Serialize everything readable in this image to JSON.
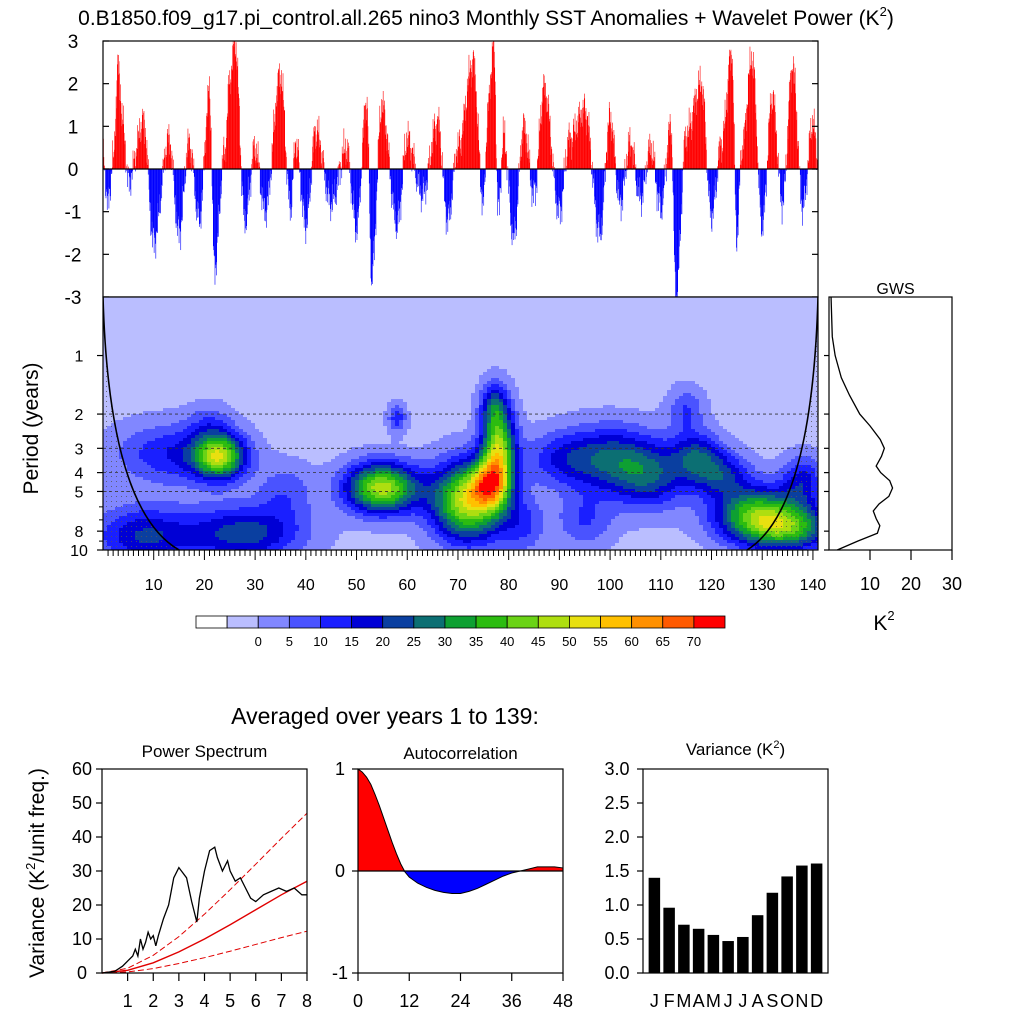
{
  "figure": {
    "title": "0.B1850.f09_g17.pi_control.all.265 nino3 Monthly SST Anomalies + Wavelet Power (K",
    "title_sup": "2",
    "title_close": ")",
    "summary_title": "Averaged over years 1 to 139:"
  },
  "colors": {
    "positive": "#ff0000",
    "negative": "#0000ff",
    "axis": "#000000",
    "cone": "#000000",
    "sig_line": "#e00000"
  },
  "chart_data": [
    {
      "id": "timeseries",
      "type": "bar",
      "description_none": "",
      "ylim": [
        -3,
        3
      ],
      "yticks": [
        "3",
        "2",
        "1",
        "0",
        "-1",
        "-2",
        "-3"
      ],
      "ytick_values": [
        3,
        2,
        1,
        0,
        -1,
        -2,
        -3
      ],
      "xlim": [
        0,
        141
      ],
      "grid": false,
      "keyframes_year": [
        0,
        1,
        2,
        3,
        4,
        5,
        8,
        10,
        13,
        15,
        17,
        19,
        21,
        22,
        24,
        25,
        26,
        28,
        30,
        32,
        35,
        37,
        38,
        40,
        42,
        45,
        48,
        50,
        52,
        53,
        55,
        58,
        60,
        63,
        66,
        68,
        70,
        73,
        75,
        76,
        77,
        78,
        79,
        81,
        83,
        85,
        87,
        90,
        92,
        95,
        98,
        100,
        102,
        104,
        106,
        108,
        110,
        112,
        113,
        115,
        118,
        120,
        122,
        124,
        125,
        126,
        128,
        130,
        132,
        134,
        136,
        138,
        140,
        141
      ],
      "keyframes_sst": [
        0.3,
        -0.8,
        0.2,
        2.4,
        1.0,
        -0.3,
        1.1,
        -1.7,
        0.7,
        -1.5,
        0.6,
        -1.2,
        1.8,
        -2.3,
        0.4,
        2.1,
        3.0,
        -1.2,
        0.5,
        -1.0,
        2.2,
        -0.9,
        0.6,
        -1.3,
        0.9,
        -0.8,
        0.5,
        -1.4,
        1.6,
        -2.5,
        1.5,
        -1.3,
        0.7,
        -0.6,
        1.1,
        -1.2,
        0.5,
        2.5,
        -0.8,
        1.5,
        3.0,
        -1.0,
        0.8,
        -1.6,
        1.0,
        -0.6,
        1.9,
        -1.0,
        0.7,
        1.4,
        -1.5,
        1.2,
        -0.8,
        0.6,
        -0.7,
        0.5,
        -0.9,
        1.0,
        -3.0,
        0.8,
        2.0,
        -1.1,
        0.6,
        2.7,
        -1.6,
        0.5,
        2.6,
        -1.3,
        1.7,
        -0.8,
        2.4,
        -0.9,
        1.1,
        0.2
      ]
    },
    {
      "id": "wavelet",
      "type": "heatmap",
      "ylabel": "Period (years)",
      "xticks": [
        "10",
        "20",
        "30",
        "40",
        "50",
        "60",
        "70",
        "80",
        "90",
        "100",
        "110",
        "120",
        "130",
        "140"
      ],
      "xtick_values": [
        10,
        20,
        30,
        40,
        50,
        60,
        70,
        80,
        90,
        100,
        110,
        120,
        130,
        140
      ],
      "yticks": [
        "1",
        "2",
        "3",
        "4",
        "5",
        "8",
        "10"
      ],
      "ytick_values": [
        1,
        2,
        3,
        4,
        5,
        8,
        10
      ],
      "xlim": [
        0,
        141
      ],
      "ylim_period": [
        0.5,
        10
      ],
      "reference_periods": [
        2,
        3,
        4,
        5
      ],
      "blobs": [
        {
          "x": 8,
          "p": 8.5,
          "sx": 7,
          "sy": 0.11,
          "v": 22
        },
        {
          "x": 14,
          "p": 3.2,
          "sx": 8,
          "sy": 0.11,
          "v": 17
        },
        {
          "x": 23,
          "p": 3.3,
          "sx": 3.5,
          "sy": 0.08,
          "v": 45
        },
        {
          "x": 21,
          "p": 2.2,
          "sx": 3,
          "sy": 0.07,
          "v": 8
        },
        {
          "x": 28,
          "p": 8.2,
          "sx": 8,
          "sy": 0.1,
          "v": 25
        },
        {
          "x": 36,
          "p": 5.0,
          "sx": 4,
          "sy": 0.1,
          "v": 10
        },
        {
          "x": 55,
          "p": 4.8,
          "sx": 5,
          "sy": 0.09,
          "v": 50
        },
        {
          "x": 58,
          "p": 2.1,
          "sx": 1.3,
          "sy": 0.05,
          "v": 15
        },
        {
          "x": 72,
          "p": 5.6,
          "sx": 5,
          "sy": 0.14,
          "v": 52
        },
        {
          "x": 76,
          "p": 4.6,
          "sx": 2.5,
          "sy": 0.08,
          "v": 30
        },
        {
          "x": 78,
          "p": 3.1,
          "sx": 2.3,
          "sy": 0.16,
          "v": 48
        },
        {
          "x": 77,
          "p": 1.8,
          "sx": 1.8,
          "sy": 0.08,
          "v": 18
        },
        {
          "x": 83,
          "p": 7.5,
          "sx": 3,
          "sy": 0.1,
          "v": 12
        },
        {
          "x": 90,
          "p": 3.4,
          "sx": 5,
          "sy": 0.1,
          "v": 14
        },
        {
          "x": 100,
          "p": 3.4,
          "sx": 6,
          "sy": 0.12,
          "v": 24
        },
        {
          "x": 95,
          "p": 7.0,
          "sx": 4,
          "sy": 0.1,
          "v": 12
        },
        {
          "x": 108,
          "p": 4.2,
          "sx": 5,
          "sy": 0.12,
          "v": 22
        },
        {
          "x": 117,
          "p": 3.3,
          "sx": 3.5,
          "sy": 0.09,
          "v": 22
        },
        {
          "x": 122,
          "p": 4.1,
          "sx": 4,
          "sy": 0.08,
          "v": 20
        },
        {
          "x": 115,
          "p": 1.9,
          "sx": 2.5,
          "sy": 0.08,
          "v": 12
        },
        {
          "x": 129,
          "p": 6.6,
          "sx": 6,
          "sy": 0.1,
          "v": 40
        },
        {
          "x": 136,
          "p": 7.8,
          "sx": 6,
          "sy": 0.08,
          "v": 30
        },
        {
          "x": 138,
          "p": 4.4,
          "sx": 3,
          "sy": 0.09,
          "v": 18
        }
      ],
      "background_value": 3,
      "cone": {
        "left_bottom_year": 15,
        "right_bottom_year": 127
      }
    },
    {
      "id": "gws",
      "type": "line",
      "title": "GWS",
      "xlabel": "K",
      "xlabel_sup": "2",
      "xticks": [
        "10",
        "20",
        "30"
      ],
      "xtick_values": [
        10,
        20,
        30
      ],
      "xlim": [
        0,
        30
      ],
      "period": [
        0.5,
        0.8,
        1.0,
        1.3,
        1.6,
        2.0,
        2.3,
        2.7,
        3.0,
        3.3,
        3.7,
        4.0,
        4.4,
        4.8,
        5.3,
        5.8,
        6.3,
        6.9,
        7.5,
        8.2,
        9.0,
        10.0
      ],
      "power": [
        0.5,
        0.8,
        1.5,
        3,
        5,
        7.5,
        10,
        12.5,
        13.5,
        12.8,
        11.5,
        12.6,
        14.8,
        15.5,
        14.6,
        12.2,
        10.8,
        11.5,
        12.4,
        11.8,
        7,
        2
      ]
    },
    {
      "id": "colorbar",
      "type": "heatmap",
      "labels": [
        "0",
        "5",
        "10",
        "15",
        "20",
        "25",
        "30",
        "35",
        "40",
        "45",
        "50",
        "55",
        "60",
        "65",
        "70"
      ],
      "colors": [
        "#ffffff",
        "#babeff",
        "#8187ff",
        "#4a53ff",
        "#1a1fff",
        "#0000d5",
        "#0a3fa0",
        "#0c6f73",
        "#0ea032",
        "#2cbc10",
        "#6ad316",
        "#aede10",
        "#e8e010",
        "#ffc000",
        "#ff9000",
        "#ff5a00",
        "#ff0000"
      ]
    },
    {
      "id": "power_spectrum",
      "type": "line",
      "title": "Power Spectrum",
      "ylabel": "Variance (K",
      "ylabel_sup": "2",
      "ylabel_close": "/unit freq.)",
      "ylim": [
        0,
        60
      ],
      "xlim": [
        0,
        8
      ],
      "yticks": [
        "60",
        "50",
        "40",
        "30",
        "20",
        "10",
        "0"
      ],
      "ytick_values": [
        60,
        50,
        40,
        30,
        20,
        10,
        0
      ],
      "xticks": [
        "1",
        "2",
        "3",
        "4",
        "5",
        "6",
        "7",
        "8"
      ],
      "xtick_values": [
        1,
        2,
        3,
        4,
        5,
        6,
        7,
        8
      ],
      "spectrum_x": [
        0,
        0.5,
        0.8,
        1.0,
        1.2,
        1.3,
        1.4,
        1.5,
        1.6,
        1.7,
        1.8,
        1.9,
        2.0,
        2.1,
        2.2,
        2.4,
        2.6,
        2.8,
        3.0,
        3.1,
        3.3,
        3.5,
        3.7,
        3.8,
        4.0,
        4.2,
        4.4,
        4.5,
        4.7,
        4.9,
        5.0,
        5.2,
        5.4,
        5.6,
        5.8,
        6.0,
        6.3,
        6.6,
        6.9,
        7.2,
        7.5,
        7.8,
        8.0
      ],
      "spectrum_y": [
        0,
        0.5,
        2,
        3.5,
        5,
        7,
        5,
        10,
        7,
        9,
        12,
        10,
        11,
        8,
        11,
        16,
        20,
        28,
        31,
        30,
        28,
        21,
        15,
        22,
        30,
        36,
        37,
        34,
        30,
        33,
        30,
        27,
        28,
        25,
        22,
        21,
        23,
        24,
        25,
        24,
        25,
        23,
        23
      ],
      "red_x": [
        0,
        1,
        2,
        3,
        4,
        5,
        6,
        7,
        8
      ],
      "red_y": [
        0,
        0.8,
        3,
        6.2,
        10,
        14.2,
        18.6,
        23,
        27
      ],
      "sig_upper_y": [
        0,
        1.4,
        5.2,
        10.7,
        17.3,
        24.5,
        32,
        39.6,
        47
      ],
      "sig_lower_y": [
        0,
        0.3,
        1.3,
        2.8,
        4.5,
        6.4,
        8.4,
        10.4,
        12.3
      ]
    },
    {
      "id": "autocorrelation",
      "type": "area",
      "title": "Autocorrelation",
      "ylim": [
        -1,
        1
      ],
      "xlim": [
        0,
        48
      ],
      "yticks": [
        "1",
        "0",
        "-1"
      ],
      "ytick_values": [
        1,
        0,
        -1
      ],
      "xticks": [
        "0",
        "12",
        "24",
        "36",
        "48"
      ],
      "xtick_values": [
        0,
        12,
        24,
        36,
        48
      ],
      "lag": [
        0,
        1,
        2,
        3,
        4,
        5,
        6,
        7,
        8,
        9,
        10,
        11,
        12,
        14,
        16,
        18,
        20,
        22,
        24,
        26,
        28,
        30,
        32,
        34,
        36,
        38,
        40,
        42,
        44,
        46,
        48
      ],
      "r": [
        1.0,
        0.97,
        0.92,
        0.85,
        0.75,
        0.64,
        0.52,
        0.4,
        0.28,
        0.17,
        0.07,
        -0.01,
        -0.06,
        -0.12,
        -0.16,
        -0.19,
        -0.21,
        -0.22,
        -0.22,
        -0.2,
        -0.17,
        -0.13,
        -0.09,
        -0.05,
        -0.02,
        0.0,
        0.02,
        0.04,
        0.04,
        0.04,
        0.03
      ]
    },
    {
      "id": "monthly_variance",
      "type": "bar",
      "title": "Variance (K",
      "title_sup": "2",
      "title_close": ")",
      "ylim": [
        0,
        3
      ],
      "yticks": [
        "3.0",
        "2.5",
        "2.0",
        "1.5",
        "1.0",
        "0.5",
        "0.0"
      ],
      "ytick_values": [
        3.0,
        2.5,
        2.0,
        1.5,
        1.0,
        0.5,
        0.0
      ],
      "categories": [
        "J",
        "F",
        "M",
        "A",
        "M",
        "J",
        "J",
        "A",
        "S",
        "O",
        "N",
        "D"
      ],
      "values": [
        1.4,
        0.96,
        0.71,
        0.65,
        0.56,
        0.47,
        0.53,
        0.85,
        1.18,
        1.42,
        1.58,
        1.61
      ],
      "bar_color": "#000000"
    }
  ]
}
